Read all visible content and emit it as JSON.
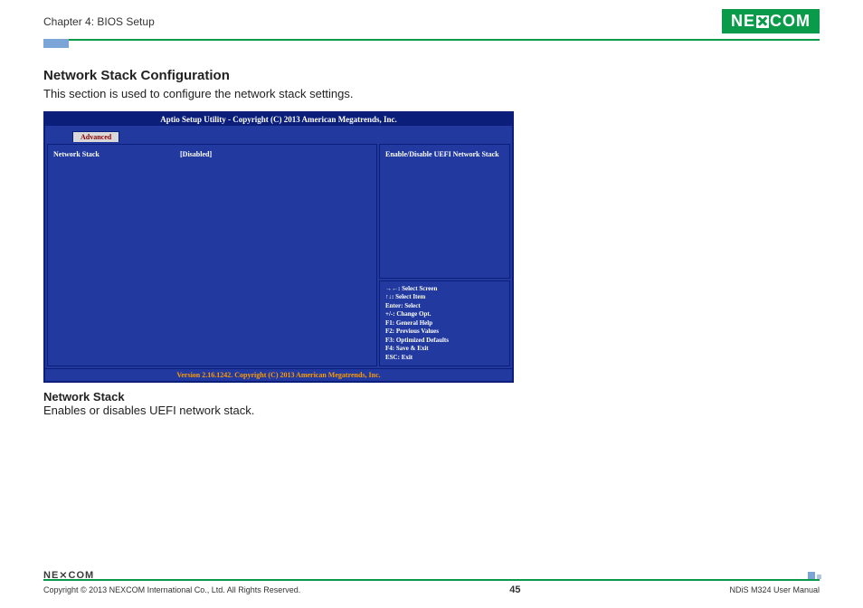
{
  "header": {
    "chapter": "Chapter 4: BIOS Setup",
    "logo_pre": "NE",
    "logo_post": "COM"
  },
  "section": {
    "title": "Network Stack Configuration",
    "desc": "This section is used to configure the network stack settings."
  },
  "bios": {
    "titlebar": "Aptio Setup Utility - Copyright (C) 2013 American Megatrends, Inc.",
    "tab": "Advanced",
    "option_label": "Network Stack",
    "option_value": "[Disabled]",
    "help_text": "Enable/Disable UEFI Network Stack",
    "legend": [
      "→←: Select Screen",
      "↑↓: Select Item",
      "Enter: Select",
      "+/-: Change Opt.",
      "F1: General Help",
      "F2: Previous Values",
      "F3: Optimized Defaults",
      "F4: Save & Exit",
      "ESC: Exit"
    ],
    "footer": "Version 2.16.1242. Copyright (C) 2013 American Megatrends, Inc."
  },
  "option_desc": {
    "title": "Network Stack",
    "text": "Enables or disables UEFI network stack."
  },
  "footer": {
    "logo": "NE⨯COM",
    "copyright": "Copyright © 2013 NEXCOM International Co., Ltd. All Rights Reserved.",
    "page": "45",
    "manual": "NDiS M324 User Manual"
  },
  "colors": {
    "brand_green": "#0a9b4a",
    "bios_dark": "#0b1e7a",
    "bios_blue": "#223aa0",
    "bios_orange": "#ff9a00"
  }
}
